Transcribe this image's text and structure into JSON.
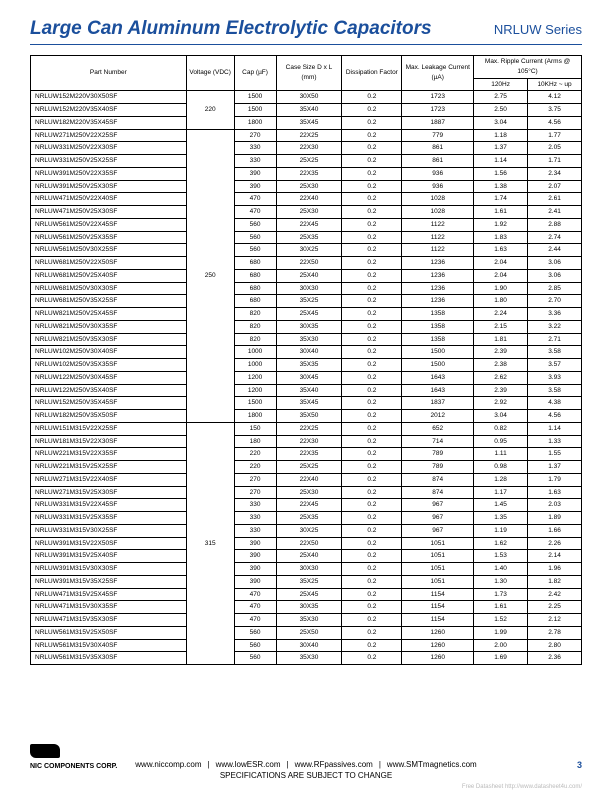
{
  "title": "Large Can Aluminum Electrolytic Capacitors",
  "series": "NRLUW Series",
  "table": {
    "headers": {
      "part": "Part Number",
      "voltage": "Voltage (VDC)",
      "cap": "Cap (µF)",
      "case": "Case Size D x L (mm)",
      "df": "Dissipation Factor",
      "leak": "Max. Leakage Current (µA)",
      "ripple_top": "Max. Ripple Current (Arms @ 105°C)",
      "ripple_120": "120Hz",
      "ripple_10k": "10KHz ~ up"
    },
    "groups": [
      {
        "voltage": "220",
        "rows": [
          [
            "NRLUW152M220V30X50SF",
            "1500",
            "30X50",
            "0.2",
            "1723",
            "2.75",
            "4.12"
          ],
          [
            "NRLUW152M220V35X40SF",
            "1500",
            "35X40",
            "0.2",
            "1723",
            "2.50",
            "3.75"
          ],
          [
            "NRLUW182M220V35X45SF",
            "1800",
            "35X45",
            "0.2",
            "1887",
            "3.04",
            "4.56"
          ]
        ]
      },
      {
        "voltage": "250",
        "rows": [
          [
            "NRLUW271M250V22X25SF",
            "270",
            "22X25",
            "0.2",
            "779",
            "1.18",
            "1.77"
          ],
          [
            "NRLUW331M250V22X30SF",
            "330",
            "22X30",
            "0.2",
            "861",
            "1.37",
            "2.05"
          ],
          [
            "NRLUW331M250V25X25SF",
            "330",
            "25X25",
            "0.2",
            "861",
            "1.14",
            "1.71"
          ],
          [
            "NRLUW391M250V22X35SF",
            "390",
            "22X35",
            "0.2",
            "936",
            "1.56",
            "2.34"
          ],
          [
            "NRLUW391M250V25X30SF",
            "390",
            "25X30",
            "0.2",
            "936",
            "1.38",
            "2.07"
          ],
          [
            "NRLUW471M250V22X40SF",
            "470",
            "22X40",
            "0.2",
            "1028",
            "1.74",
            "2.61"
          ],
          [
            "NRLUW471M250V25X30SF",
            "470",
            "25X30",
            "0.2",
            "1028",
            "1.61",
            "2.41"
          ],
          [
            "NRLUW561M250V22X45SF",
            "560",
            "22X45",
            "0.2",
            "1122",
            "1.92",
            "2.88"
          ],
          [
            "NRLUW561M250V25X35SF",
            "560",
            "25X35",
            "0.2",
            "1122",
            "1.83",
            "2.74"
          ],
          [
            "NRLUW561M250V30X25SF",
            "560",
            "30X25",
            "0.2",
            "1122",
            "1.63",
            "2.44"
          ],
          [
            "NRLUW681M250V22X50SF",
            "680",
            "22X50",
            "0.2",
            "1236",
            "2.04",
            "3.06"
          ],
          [
            "NRLUW681M250V25X40SF",
            "680",
            "25X40",
            "0.2",
            "1236",
            "2.04",
            "3.06"
          ],
          [
            "NRLUW681M250V30X30SF",
            "680",
            "30X30",
            "0.2",
            "1236",
            "1.90",
            "2.85"
          ],
          [
            "NRLUW681M250V35X25SF",
            "680",
            "35X25",
            "0.2",
            "1236",
            "1.80",
            "2.70"
          ],
          [
            "NRLUW821M250V25X45SF",
            "820",
            "25X45",
            "0.2",
            "1358",
            "2.24",
            "3.36"
          ],
          [
            "NRLUW821M250V30X35SF",
            "820",
            "30X35",
            "0.2",
            "1358",
            "2.15",
            "3.22"
          ],
          [
            "NRLUW821M250V35X30SF",
            "820",
            "35X30",
            "0.2",
            "1358",
            "1.81",
            "2.71"
          ],
          [
            "NRLUW102M250V30X40SF",
            "1000",
            "30X40",
            "0.2",
            "1500",
            "2.39",
            "3.58"
          ],
          [
            "NRLUW102M250V35X35SF",
            "1000",
            "35X35",
            "0.2",
            "1500",
            "2.38",
            "3.57"
          ],
          [
            "NRLUW122M250V30X45SF",
            "1200",
            "30X45",
            "0.2",
            "1643",
            "2.62",
            "3.93"
          ],
          [
            "NRLUW122M250V35X40SF",
            "1200",
            "35X40",
            "0.2",
            "1643",
            "2.39",
            "3.58"
          ],
          [
            "NRLUW152M250V35X45SF",
            "1500",
            "35X45",
            "0.2",
            "1837",
            "2.92",
            "4.38"
          ],
          [
            "NRLUW182M250V35X50SF",
            "1800",
            "35X50",
            "0.2",
            "2012",
            "3.04",
            "4.56"
          ]
        ]
      },
      {
        "voltage": "315",
        "rows": [
          [
            "NRLUW151M315V22X25SF",
            "150",
            "22X25",
            "0.2",
            "652",
            "0.82",
            "1.14"
          ],
          [
            "NRLUW181M315V22X30SF",
            "180",
            "22X30",
            "0.2",
            "714",
            "0.95",
            "1.33"
          ],
          [
            "NRLUW221M315V22X35SF",
            "220",
            "22X35",
            "0.2",
            "789",
            "1.11",
            "1.55"
          ],
          [
            "NRLUW221M315V25X25SF",
            "220",
            "25X25",
            "0.2",
            "789",
            "0.98",
            "1.37"
          ],
          [
            "NRLUW271M315V22X40SF",
            "270",
            "22X40",
            "0.2",
            "874",
            "1.28",
            "1.79"
          ],
          [
            "NRLUW271M315V25X30SF",
            "270",
            "25X30",
            "0.2",
            "874",
            "1.17",
            "1.63"
          ],
          [
            "NRLUW331M315V22X45SF",
            "330",
            "22X45",
            "0.2",
            "967",
            "1.45",
            "2.03"
          ],
          [
            "NRLUW331M315V25X35SF",
            "330",
            "25X35",
            "0.2",
            "967",
            "1.35",
            "1.89"
          ],
          [
            "NRLUW331M315V30X25SF",
            "330",
            "30X25",
            "0.2",
            "967",
            "1.19",
            "1.66"
          ],
          [
            "NRLUW391M315V22X50SF",
            "390",
            "22X50",
            "0.2",
            "1051",
            "1.62",
            "2.26"
          ],
          [
            "NRLUW391M315V25X40SF",
            "390",
            "25X40",
            "0.2",
            "1051",
            "1.53",
            "2.14"
          ],
          [
            "NRLUW391M315V30X30SF",
            "390",
            "30X30",
            "0.2",
            "1051",
            "1.40",
            "1.96"
          ],
          [
            "NRLUW391M315V35X25SF",
            "390",
            "35X25",
            "0.2",
            "1051",
            "1.30",
            "1.82"
          ],
          [
            "NRLUW471M315V25X45SF",
            "470",
            "25X45",
            "0.2",
            "1154",
            "1.73",
            "2.42"
          ],
          [
            "NRLUW471M315V30X35SF",
            "470",
            "30X35",
            "0.2",
            "1154",
            "1.61",
            "2.25"
          ],
          [
            "NRLUW471M315V35X30SF",
            "470",
            "35X30",
            "0.2",
            "1154",
            "1.52",
            "2.12"
          ],
          [
            "NRLUW561M315V25X50SF",
            "560",
            "25X50",
            "0.2",
            "1260",
            "1.99",
            "2.78"
          ],
          [
            "NRLUW561M315V30X40SF",
            "560",
            "30X40",
            "0.2",
            "1260",
            "2.00",
            "2.80"
          ],
          [
            "NRLUW561M315V35X30SF",
            "560",
            "35X30",
            "0.2",
            "1260",
            "1.69",
            "2.36"
          ]
        ]
      }
    ]
  },
  "footer": {
    "corp": "NIC COMPONENTS CORP.",
    "links": [
      "www.niccomp.com",
      "www.lowESR.com",
      "www.RFpassives.com",
      "www.SMTmagnetics.com"
    ],
    "sep": "|",
    "disclaimer": "SPECIFICATIONS ARE SUBJECT TO CHANGE",
    "page": "3",
    "watermark": "Free Datasheet http://www.datasheet4u.com/"
  },
  "colwidths": [
    "130",
    "40",
    "35",
    "55",
    "50",
    "60",
    "45",
    "45"
  ]
}
